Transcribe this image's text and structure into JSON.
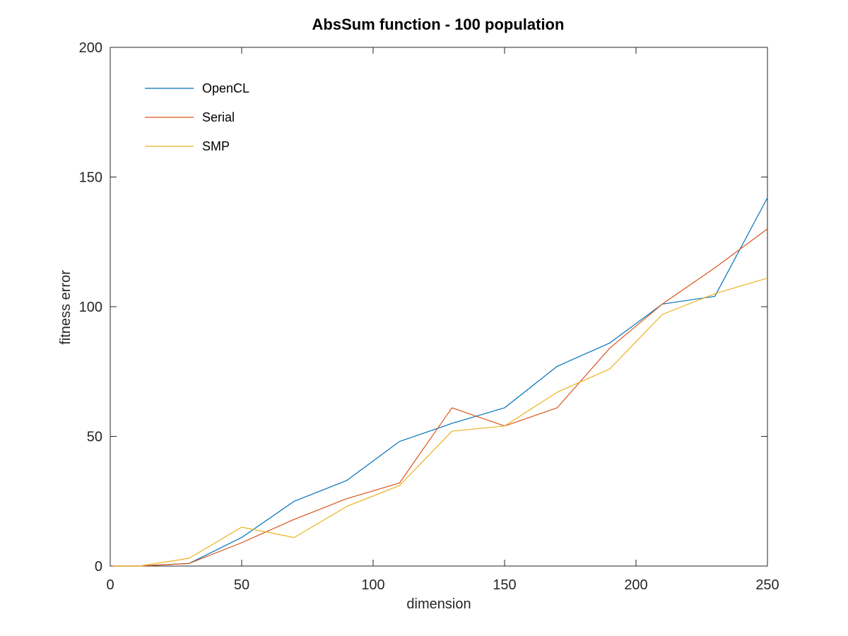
{
  "chart_data": {
    "type": "line",
    "title": "AbsSum function - 100 population",
    "xlabel": "dimension",
    "ylabel": "fitness error",
    "xlim": [
      0,
      250
    ],
    "ylim": [
      0,
      200
    ],
    "xticks": [
      0,
      50,
      100,
      150,
      200,
      250
    ],
    "yticks": [
      0,
      50,
      100,
      150,
      200
    ],
    "grid": false,
    "legend_position": "top-left",
    "x": [
      1,
      11,
      30,
      50,
      70,
      90,
      110,
      130,
      150,
      170,
      190,
      210,
      230,
      250
    ],
    "series": [
      {
        "name": "OpenCL",
        "color": "#0072BD",
        "values": [
          0,
          0,
          1,
          11,
          25,
          33,
          48,
          55,
          61,
          77,
          86,
          101,
          104,
          142
        ]
      },
      {
        "name": "Serial",
        "color": "#D95319",
        "values": [
          0,
          0,
          1,
          9,
          18,
          26,
          32,
          61,
          54,
          61,
          84,
          101,
          115,
          130
        ]
      },
      {
        "name": "SMP",
        "color": "#EDB120",
        "values": [
          0,
          0,
          3,
          15,
          11,
          23,
          31,
          52,
          54,
          67,
          76,
          97,
          105,
          111
        ]
      }
    ]
  }
}
